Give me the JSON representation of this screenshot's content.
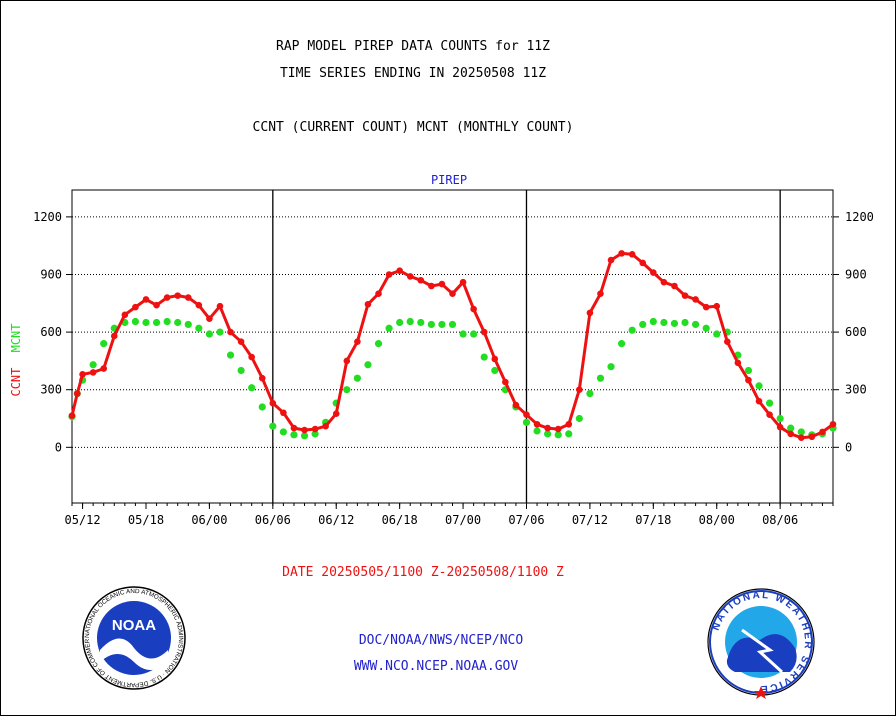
{
  "header": {
    "line1": "RAP MODEL PIREP DATA COUNTS for 11Z",
    "line2": "TIME SERIES ENDING IN 20250508 11Z",
    "line3": "CCNT (CURRENT COUNT) MCNT (MONTHLY COUNT)"
  },
  "footer": {
    "date_range": "DATE 20250505/1100 Z-20250508/1100 Z",
    "org": "DOC/NOAA/NWS/NCEP/NCO",
    "url": "WWW.NCO.NCEP.NOAA.GOV",
    "noaa_logo_text": "NOAA",
    "noaa_ring_text": "NATIONAL OCEANIC AND ATMOSPHERIC ADMINISTRATION · U.S. DEPARTMENT OF COMMERCE",
    "nws_ring_text": "NATIONAL WEATHER SERVICE"
  },
  "colors": {
    "ccnt": "#ee1111",
    "mcnt": "#22dd22",
    "title_blue": "#2222cc",
    "footer_red": "#ee1111",
    "footer_blue": "#2222cc"
  },
  "chart_data": {
    "type": "line",
    "title": "PIREP",
    "ylabel_left": [
      "CCNT",
      "MCNT"
    ],
    "yticks": [
      0,
      300,
      600,
      900,
      1200
    ],
    "ylim": [
      -290,
      1340
    ],
    "x_tick_labels": [
      "05/12",
      "05/18",
      "06/00",
      "06/06",
      "06/12",
      "06/18",
      "07/00",
      "07/06",
      "07/12",
      "07/18",
      "08/00",
      "08/06"
    ],
    "x_tick_hours": [
      1,
      7,
      13,
      19,
      25,
      31,
      37,
      43,
      49,
      55,
      61,
      67
    ],
    "xlim_hours": [
      0,
      72
    ],
    "day_boundaries_hours": [
      19,
      43,
      67
    ],
    "grid": "horizontal dotted",
    "series": [
      {
        "name": "CCNT",
        "hours": [
          0,
          0.5,
          1,
          2,
          3,
          4,
          5,
          6,
          7,
          8,
          9,
          10,
          11,
          12,
          13,
          14,
          15,
          16,
          17,
          18,
          19,
          20,
          21,
          22,
          23,
          24,
          25,
          26,
          27,
          28,
          29,
          30,
          31,
          32,
          33,
          34,
          35,
          36,
          37,
          38,
          39,
          40,
          41,
          42,
          43,
          44,
          45,
          46,
          47,
          48,
          49,
          50,
          51,
          52,
          53,
          54,
          55,
          56,
          57,
          58,
          59,
          60,
          61,
          62,
          63,
          64,
          65,
          66,
          67,
          68,
          69,
          70,
          71,
          72
        ],
        "values": [
          165,
          280,
          380,
          390,
          410,
          580,
          690,
          730,
          770,
          740,
          780,
          790,
          780,
          740,
          670,
          735,
          600,
          550,
          470,
          360,
          230,
          180,
          100,
          90,
          95,
          110,
          175,
          450,
          550,
          745,
          800,
          900,
          920,
          890,
          870,
          840,
          850,
          800,
          860,
          720,
          600,
          460,
          340,
          220,
          170,
          120,
          100,
          95,
          120,
          300,
          700,
          800,
          975,
          1010,
          1005,
          960,
          910,
          860,
          840,
          790,
          770,
          730,
          735,
          550,
          440,
          350,
          240,
          170,
          105,
          70,
          50,
          55,
          80,
          120
        ]
      },
      {
        "name": "MCNT",
        "hours": [
          0,
          0.5,
          1,
          2,
          3,
          4,
          5,
          6,
          7,
          8,
          9,
          10,
          11,
          12,
          13,
          14,
          15,
          16,
          17,
          18,
          19,
          20,
          21,
          22,
          23,
          24,
          25,
          26,
          27,
          28,
          29,
          30,
          31,
          32,
          33,
          34,
          35,
          36,
          37,
          38,
          39,
          40,
          41,
          42,
          43,
          44,
          45,
          46,
          47,
          48,
          49,
          50,
          51,
          52,
          53,
          54,
          55,
          56,
          57,
          58,
          59,
          60,
          61,
          62,
          63,
          64,
          65,
          66,
          67,
          68,
          69,
          70,
          71,
          72
        ],
        "values": [
          160,
          280,
          350,
          430,
          540,
          620,
          650,
          655,
          650,
          650,
          655,
          650,
          640,
          620,
          590,
          600,
          480,
          400,
          310,
          210,
          110,
          80,
          65,
          60,
          70,
          130,
          230,
          300,
          360,
          430,
          540,
          620,
          650,
          655,
          650,
          640,
          640,
          640,
          590,
          590,
          470,
          400,
          300,
          210,
          130,
          85,
          70,
          65,
          70,
          150,
          280,
          360,
          420,
          540,
          610,
          640,
          655,
          650,
          645,
          650,
          640,
          620,
          590,
          600,
          480,
          400,
          320,
          230,
          150,
          100,
          80,
          65,
          70,
          100
        ]
      }
    ]
  }
}
